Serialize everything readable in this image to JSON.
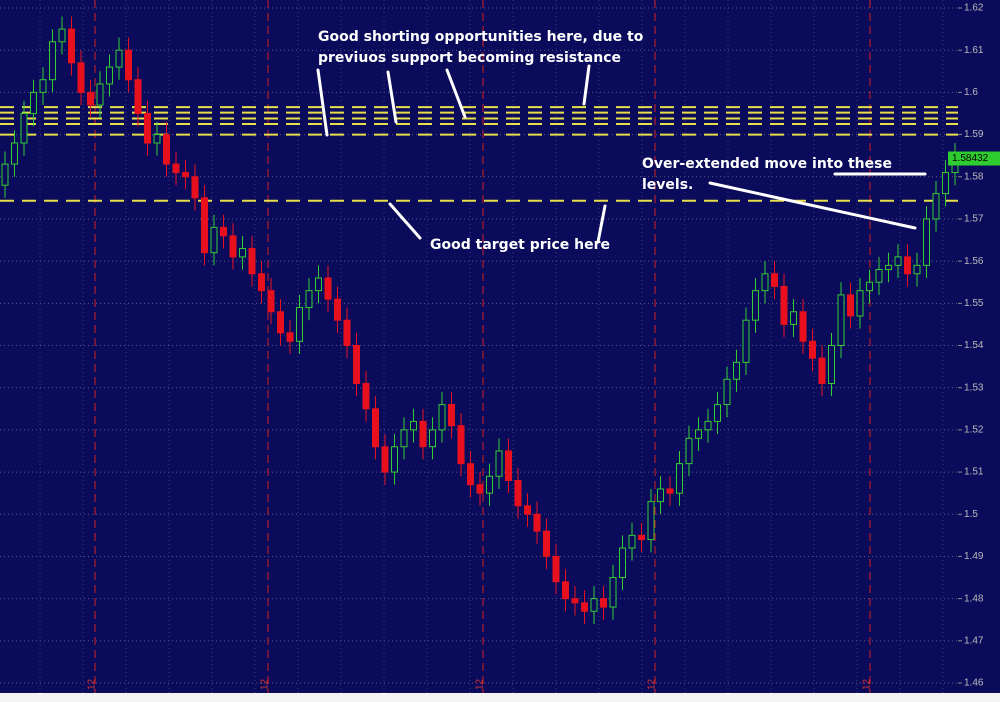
{
  "chart_data": {
    "type": "candlestick",
    "open": [
      1.578,
      1.583,
      1.588,
      1.595,
      1.6,
      1.603,
      1.612,
      1.615,
      1.607,
      1.6,
      1.597,
      1.602,
      1.606,
      1.61,
      1.603,
      1.595,
      1.588,
      1.59,
      1.583,
      1.581,
      1.58,
      1.575,
      1.562,
      1.568,
      1.566,
      1.561,
      1.563,
      1.557,
      1.553,
      1.548,
      1.543,
      1.541,
      1.549,
      1.553,
      1.556,
      1.551,
      1.546,
      1.54,
      1.531,
      1.525,
      1.516,
      1.51,
      1.516,
      1.52,
      1.522,
      1.516,
      1.52,
      1.526,
      1.521,
      1.512,
      1.507,
      1.505,
      1.509,
      1.515,
      1.508,
      1.502,
      1.5,
      1.496,
      1.49,
      1.484,
      1.48,
      1.479,
      1.477,
      1.48,
      1.478,
      1.485,
      1.492,
      1.495,
      1.494,
      1.503,
      1.506,
      1.505,
      1.512,
      1.518,
      1.52,
      1.522,
      1.526,
      1.532,
      1.536,
      1.546,
      1.553,
      1.557,
      1.554,
      1.545,
      1.548,
      1.541,
      1.537,
      1.531,
      1.54,
      1.552,
      1.547,
      1.553,
      1.555,
      1.558,
      1.559,
      1.561,
      1.557,
      1.559,
      1.57,
      1.576,
      1.581
    ],
    "high": [
      1.586,
      1.591,
      1.598,
      1.603,
      1.606,
      1.615,
      1.618,
      1.618,
      1.61,
      1.603,
      1.605,
      1.609,
      1.613,
      1.613,
      1.606,
      1.598,
      1.593,
      1.593,
      1.586,
      1.584,
      1.583,
      1.578,
      1.571,
      1.571,
      1.569,
      1.566,
      1.566,
      1.56,
      1.556,
      1.551,
      1.546,
      1.552,
      1.556,
      1.559,
      1.559,
      1.554,
      1.549,
      1.543,
      1.534,
      1.528,
      1.519,
      1.519,
      1.523,
      1.525,
      1.525,
      1.523,
      1.529,
      1.529,
      1.524,
      1.515,
      1.51,
      1.512,
      1.518,
      1.518,
      1.511,
      1.505,
      1.503,
      1.499,
      1.493,
      1.487,
      1.483,
      1.482,
      1.483,
      1.483,
      1.488,
      1.495,
      1.498,
      1.498,
      1.506,
      1.509,
      1.509,
      1.515,
      1.521,
      1.523,
      1.525,
      1.529,
      1.535,
      1.539,
      1.549,
      1.556,
      1.56,
      1.56,
      1.557,
      1.551,
      1.551,
      1.544,
      1.54,
      1.543,
      1.555,
      1.555,
      1.556,
      1.558,
      1.561,
      1.562,
      1.564,
      1.564,
      1.562,
      1.573,
      1.579,
      1.584,
      1.588
    ],
    "low": [
      1.575,
      1.58,
      1.585,
      1.592,
      1.597,
      1.6,
      1.609,
      1.604,
      1.597,
      1.594,
      1.594,
      1.599,
      1.603,
      1.6,
      1.592,
      1.585,
      1.585,
      1.58,
      1.578,
      1.577,
      1.572,
      1.559,
      1.559,
      1.563,
      1.558,
      1.558,
      1.554,
      1.55,
      1.545,
      1.54,
      1.538,
      1.538,
      1.546,
      1.55,
      1.548,
      1.543,
      1.537,
      1.528,
      1.522,
      1.513,
      1.507,
      1.507,
      1.513,
      1.517,
      1.513,
      1.513,
      1.517,
      1.518,
      1.509,
      1.504,
      1.502,
      1.502,
      1.506,
      1.505,
      1.499,
      1.497,
      1.493,
      1.487,
      1.481,
      1.477,
      1.476,
      1.474,
      1.474,
      1.475,
      1.475,
      1.482,
      1.489,
      1.491,
      1.491,
      1.5,
      1.502,
      1.502,
      1.509,
      1.515,
      1.517,
      1.519,
      1.523,
      1.529,
      1.533,
      1.543,
      1.55,
      1.551,
      1.542,
      1.542,
      1.538,
      1.534,
      1.528,
      1.528,
      1.537,
      1.544,
      1.544,
      1.55,
      1.552,
      1.555,
      1.556,
      1.554,
      1.554,
      1.556,
      1.567,
      1.573,
      1.578
    ],
    "close": [
      1.583,
      1.588,
      1.595,
      1.6,
      1.603,
      1.612,
      1.615,
      1.607,
      1.6,
      1.597,
      1.602,
      1.606,
      1.61,
      1.603,
      1.595,
      1.588,
      1.59,
      1.583,
      1.581,
      1.58,
      1.575,
      1.562,
      1.568,
      1.566,
      1.561,
      1.563,
      1.557,
      1.553,
      1.548,
      1.543,
      1.541,
      1.549,
      1.553,
      1.556,
      1.551,
      1.546,
      1.54,
      1.531,
      1.525,
      1.516,
      1.51,
      1.516,
      1.52,
      1.522,
      1.516,
      1.52,
      1.526,
      1.521,
      1.512,
      1.507,
      1.505,
      1.509,
      1.515,
      1.508,
      1.502,
      1.5,
      1.496,
      1.49,
      1.484,
      1.48,
      1.479,
      1.477,
      1.48,
      1.478,
      1.485,
      1.492,
      1.495,
      1.494,
      1.503,
      1.506,
      1.505,
      1.512,
      1.518,
      1.52,
      1.522,
      1.526,
      1.532,
      1.536,
      1.546,
      1.553,
      1.557,
      1.554,
      1.545,
      1.548,
      1.541,
      1.537,
      1.531,
      1.54,
      1.552,
      1.547,
      1.553,
      1.555,
      1.558,
      1.559,
      1.561,
      1.557,
      1.559,
      1.57,
      1.576,
      1.581,
      1.585
    ],
    "up_color": "#33cc33",
    "down_color": "#e8101c",
    "background": "#0b0b5c",
    "ylim": [
      1.46,
      1.62
    ],
    "yticks": [
      1.46,
      1.47,
      1.48,
      1.49,
      1.5,
      1.51,
      1.52,
      1.53,
      1.54,
      1.55,
      1.56,
      1.57,
      1.58,
      1.59,
      1.6,
      1.61,
      1.62
    ],
    "grid": true,
    "levels": [
      1.5965,
      1.5952,
      1.5938,
      1.5925,
      1.59,
      1.5743
    ],
    "level_color": "#e8e04a",
    "last_price": 1.58432,
    "session_labels": [
      "12",
      "12",
      "12",
      "12",
      "12"
    ],
    "annotations": [
      [
        "Good shorting opportunities here, due to",
        "previuos support becoming resistance"
      ],
      [
        "Good target price here"
      ],
      [
        "Over-extended move into these",
        "levels."
      ]
    ]
  }
}
